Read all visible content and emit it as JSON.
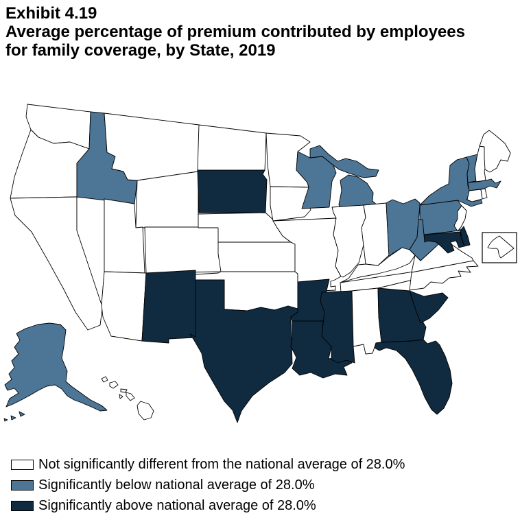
{
  "title": {
    "exhibit": "Exhibit 4.19",
    "line1": "Average percentage of premium contributed by employees",
    "line2": "for family coverage, by State, 2019"
  },
  "legend": {
    "items": [
      {
        "key": "not_significant",
        "label": "Not significantly different from the national average of 28.0%",
        "color": "#ffffff"
      },
      {
        "key": "below",
        "label": "Significantly below national average of 28.0%",
        "color": "#4d7596"
      },
      {
        "key": "above",
        "label": "Significantly above national average of 28.0%",
        "color": "#102a40"
      }
    ]
  },
  "chart_data": {
    "type": "choropleth",
    "title": "Average percentage of premium contributed by employees for family coverage, by State, 2019",
    "national_average_pct": 28.0,
    "categories": {
      "not_significant": "Not significantly different from the national average of 28.0%",
      "below": "Significantly below national average of 28.0%",
      "above": "Significantly above national average of 28.0%"
    },
    "states": {
      "WA": "not_significant",
      "OR": "not_significant",
      "CA": "not_significant",
      "NV": "not_significant",
      "ID": "below",
      "MT": "not_significant",
      "WY": "not_significant",
      "UT": "not_significant",
      "CO": "not_significant",
      "AZ": "not_significant",
      "NM": "above",
      "ND": "not_significant",
      "SD": "above",
      "NE": "not_significant",
      "KS": "not_significant",
      "OK": "not_significant",
      "TX": "above",
      "MN": "not_significant",
      "IA": "not_significant",
      "MO": "not_significant",
      "AR": "above",
      "LA": "above",
      "WI": "below",
      "MI": "below",
      "IL": "not_significant",
      "IN": "not_significant",
      "OH": "below",
      "KY": "not_significant",
      "TN": "not_significant",
      "MS": "above",
      "AL": "not_significant",
      "GA": "above",
      "SC": "above",
      "FL": "above",
      "NC": "not_significant",
      "VA": "not_significant",
      "WV": "below",
      "PA": "below",
      "NY": "below",
      "VT": "below",
      "NH": "not_significant",
      "ME": "not_significant",
      "MA": "below",
      "CT": "not_significant",
      "RI": "not_significant",
      "NJ": "not_significant",
      "DE": "above",
      "MD": "above",
      "AK": "below",
      "HI": "not_significant",
      "DC": "not_significant"
    }
  }
}
